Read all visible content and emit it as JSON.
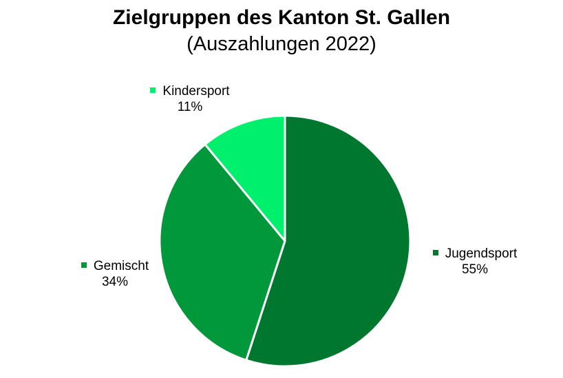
{
  "chart_data": {
    "type": "pie",
    "title": "Zielgruppen des Kanton St. Gallen",
    "subtitle": "(Auszahlungen 2022)",
    "slices": [
      {
        "label": "Jugendsport",
        "value": 55,
        "value_label": "55%",
        "color": "#00772f"
      },
      {
        "label": "Gemischt",
        "value": 34,
        "value_label": "34%",
        "color": "#00983a"
      },
      {
        "label": "Kindersport",
        "value": 11,
        "value_label": "11%",
        "color": "#00f06e"
      }
    ],
    "start_angle": "12 o'clock",
    "direction": "clockwise",
    "legend": "none",
    "slice_border_color": "#ffffff"
  }
}
